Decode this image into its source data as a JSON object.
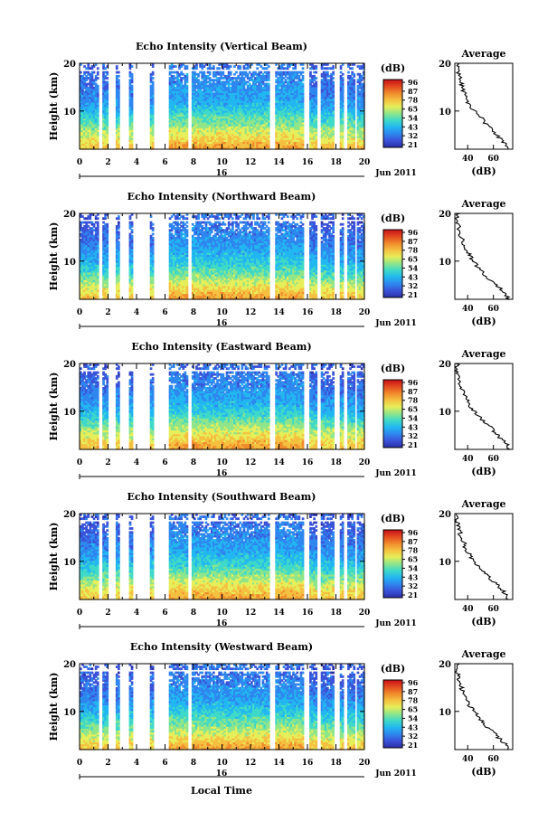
{
  "page": {
    "background": "#ffffff"
  },
  "colorbar": {
    "unit_label": "(dB)",
    "tick_labels": [
      "96",
      "87",
      "78",
      "65",
      "54",
      "43",
      "32",
      "21"
    ],
    "colors": [
      "#2b2fa8",
      "#3a52d8",
      "#2f86ef",
      "#22b7f0",
      "#3fd9c8",
      "#8fe58a",
      "#e6ee5a",
      "#f5c040",
      "#f08a2c",
      "#e34a1f",
      "#c8101a"
    ]
  },
  "time_axis": {
    "tick_labels": [
      "0",
      "2",
      "4",
      "6",
      "8",
      "10",
      "12",
      "14",
      "16",
      "18",
      "20"
    ],
    "date_day": "16",
    "month_year": "Jun 2011",
    "xlabel": "Local Time"
  },
  "chart_data": [
    {
      "type": "heatmap",
      "title": "Echo Intensity (Vertical Beam)",
      "ylabel": "Height (km)",
      "y_tick_labels": [
        "20",
        "10"
      ],
      "xlim": [
        0,
        20
      ],
      "ylim": [
        2,
        20
      ],
      "value_range_db": [
        21,
        96
      ],
      "gaps_hours": [
        [
          1.3,
          1.65
        ],
        [
          1.95,
          2.5
        ],
        [
          2.75,
          3.5
        ],
        [
          3.8,
          4.9
        ],
        [
          5.2,
          6.3
        ],
        [
          7.6,
          7.9
        ],
        [
          13.3,
          13.75
        ],
        [
          15.8,
          16.1
        ],
        [
          16.6,
          16.9
        ],
        [
          17.9,
          18.3
        ],
        [
          18.6,
          18.8
        ],
        [
          19.3,
          19.5
        ]
      ],
      "profile": {
        "title": "Average",
        "xlabel": "(dB)",
        "x_tick_labels": [
          "40",
          "60"
        ],
        "y_tick_labels": [
          "20",
          "10"
        ],
        "xlim": [
          30,
          75
        ],
        "ylim": [
          2,
          20
        ],
        "height_km": [
          2,
          3,
          4,
          5,
          6,
          7,
          8,
          9,
          10,
          11,
          12,
          13,
          14,
          15,
          16,
          17,
          18,
          19,
          20
        ],
        "db": [
          73,
          70,
          66,
          62,
          60,
          55,
          52,
          50,
          45,
          42,
          40,
          38,
          37,
          36,
          35,
          34,
          33,
          32,
          33
        ]
      }
    },
    {
      "type": "heatmap",
      "title": "Echo Intensity (Northward Beam)",
      "ylabel": "Height (km)",
      "y_tick_labels": [
        "20",
        "10"
      ],
      "xlim": [
        0,
        20
      ],
      "ylim": [
        2,
        20
      ],
      "value_range_db": [
        21,
        96
      ],
      "gaps_hours": [
        [
          1.3,
          1.65
        ],
        [
          1.95,
          2.5
        ],
        [
          2.75,
          3.5
        ],
        [
          3.8,
          4.9
        ],
        [
          5.2,
          6.3
        ],
        [
          7.6,
          7.9
        ],
        [
          13.3,
          13.75
        ],
        [
          15.8,
          16.1
        ],
        [
          16.6,
          16.9
        ],
        [
          17.9,
          18.3
        ],
        [
          18.6,
          18.8
        ],
        [
          19.3,
          19.5
        ]
      ],
      "profile": {
        "title": "Average",
        "xlabel": "(dB)",
        "x_tick_labels": [
          "40",
          "60"
        ],
        "y_tick_labels": [
          "20",
          "10"
        ],
        "xlim": [
          30,
          75
        ],
        "ylim": [
          2,
          20
        ],
        "height_km": [
          2,
          3,
          4,
          5,
          6,
          7,
          8,
          9,
          10,
          11,
          12,
          13,
          14,
          15,
          16,
          17,
          18,
          19,
          20
        ],
        "db": [
          72,
          70,
          66,
          62,
          58,
          54,
          50,
          47,
          44,
          42,
          40,
          38,
          36,
          35,
          34,
          33,
          32,
          31,
          33
        ]
      }
    },
    {
      "type": "heatmap",
      "title": "Echo Intensity (Eastward Beam)",
      "ylabel": "Height (km)",
      "y_tick_labels": [
        "20",
        "10"
      ],
      "xlim": [
        0,
        20
      ],
      "ylim": [
        2,
        20
      ],
      "value_range_db": [
        21,
        96
      ],
      "gaps_hours": [
        [
          1.3,
          1.65
        ],
        [
          1.95,
          2.5
        ],
        [
          2.75,
          3.5
        ],
        [
          3.8,
          4.9
        ],
        [
          5.2,
          6.3
        ],
        [
          7.6,
          7.9
        ],
        [
          13.3,
          13.75
        ],
        [
          15.8,
          16.1
        ],
        [
          16.6,
          16.9
        ],
        [
          17.9,
          18.3
        ],
        [
          18.6,
          18.8
        ],
        [
          19.3,
          19.5
        ]
      ],
      "profile": {
        "title": "Average",
        "xlabel": "(dB)",
        "x_tick_labels": [
          "40",
          "60"
        ],
        "y_tick_labels": [
          "20",
          "10"
        ],
        "xlim": [
          30,
          75
        ],
        "ylim": [
          2,
          20
        ],
        "height_km": [
          2,
          3,
          4,
          5,
          6,
          7,
          8,
          9,
          10,
          11,
          12,
          13,
          14,
          15,
          16,
          17,
          18,
          19,
          20
        ],
        "db": [
          72,
          71,
          67,
          63,
          60,
          56,
          52,
          48,
          45,
          42,
          40,
          38,
          37,
          35,
          34,
          33,
          32,
          31,
          32
        ]
      }
    },
    {
      "type": "heatmap",
      "title": "Echo Intensity (Southward Beam)",
      "ylabel": "Height (km)",
      "y_tick_labels": [
        "20",
        "10"
      ],
      "xlim": [
        0,
        20
      ],
      "ylim": [
        2,
        20
      ],
      "value_range_db": [
        21,
        96
      ],
      "gaps_hours": [
        [
          1.3,
          1.65
        ],
        [
          1.95,
          2.5
        ],
        [
          2.75,
          3.5
        ],
        [
          3.8,
          4.9
        ],
        [
          5.2,
          6.3
        ],
        [
          7.6,
          7.9
        ],
        [
          13.3,
          13.75
        ],
        [
          15.8,
          16.1
        ],
        [
          16.6,
          16.9
        ],
        [
          17.9,
          18.3
        ],
        [
          18.6,
          18.8
        ],
        [
          19.3,
          19.5
        ]
      ],
      "profile": {
        "title": "Average",
        "xlabel": "(dB)",
        "x_tick_labels": [
          "40",
          "60"
        ],
        "y_tick_labels": [
          "20",
          "10"
        ],
        "xlim": [
          30,
          75
        ],
        "ylim": [
          2,
          20
        ],
        "height_km": [
          2,
          3,
          4,
          5,
          6,
          7,
          8,
          9,
          10,
          11,
          12,
          13,
          14,
          15,
          16,
          17,
          18,
          19,
          20
        ],
        "db": [
          72,
          70,
          67,
          63,
          59,
          55,
          51,
          48,
          45,
          42,
          40,
          38,
          37,
          35,
          34,
          33,
          32,
          31,
          32
        ]
      }
    },
    {
      "type": "heatmap",
      "title": "Echo Intensity (Westward Beam)",
      "ylabel": "Height (km)",
      "y_tick_labels": [
        "20",
        "10"
      ],
      "xlim": [
        0,
        20
      ],
      "ylim": [
        2,
        20
      ],
      "value_range_db": [
        21,
        96
      ],
      "gaps_hours": [
        [
          1.3,
          1.65
        ],
        [
          1.95,
          2.5
        ],
        [
          2.75,
          3.5
        ],
        [
          3.8,
          4.9
        ],
        [
          5.2,
          6.3
        ],
        [
          7.6,
          7.9
        ],
        [
          13.3,
          13.75
        ],
        [
          15.8,
          16.1
        ],
        [
          16.6,
          16.9
        ],
        [
          17.9,
          18.3
        ],
        [
          18.6,
          18.8
        ],
        [
          19.3,
          19.5
        ]
      ],
      "profile": {
        "title": "Average",
        "xlabel": "(dB)",
        "x_tick_labels": [
          "40",
          "60"
        ],
        "y_tick_labels": [
          "20",
          "10"
        ],
        "xlim": [
          30,
          75
        ],
        "ylim": [
          2,
          20
        ],
        "height_km": [
          2,
          3,
          4,
          5,
          6,
          7,
          8,
          9,
          10,
          11,
          12,
          13,
          14,
          15,
          16,
          17,
          18,
          19,
          20
        ],
        "db": [
          72,
          70,
          66,
          62,
          58,
          54,
          51,
          48,
          45,
          42,
          40,
          38,
          36,
          35,
          34,
          33,
          32,
          31,
          33
        ]
      }
    }
  ]
}
